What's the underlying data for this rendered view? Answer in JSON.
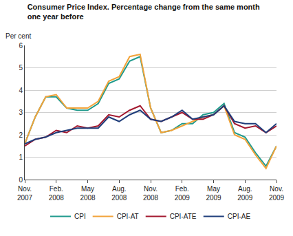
{
  "chart_data": {
    "type": "line",
    "title": "Consumer Price Index. Percentage change from the same month one year before",
    "y_label": "Per cent",
    "categories": [
      "Nov. 2007",
      null,
      null,
      "Feb. 2008",
      null,
      null,
      "May 2008",
      null,
      null,
      "Aug. 2008",
      null,
      null,
      "Nov. 2008",
      null,
      null,
      "Feb. 2009",
      null,
      null,
      "May 2009",
      null,
      null,
      "Aug. 2009",
      null,
      null,
      "Nov. 2009"
    ],
    "series": [
      {
        "name": "CPI",
        "color": "#1f9a8c",
        "values": [
          1.6,
          2.8,
          3.7,
          3.7,
          3.2,
          3.1,
          3.1,
          3.4,
          4.3,
          4.5,
          5.3,
          5.5,
          3.2,
          2.1,
          2.2,
          2.5,
          2.5,
          2.9,
          3.0,
          3.4,
          2.1,
          1.9,
          1.2,
          0.6,
          1.5
        ]
      },
      {
        "name": "CPI-AT",
        "color": "#f2a33a",
        "values": [
          1.6,
          2.8,
          3.7,
          3.8,
          3.2,
          3.2,
          3.2,
          3.5,
          4.4,
          4.6,
          5.5,
          5.6,
          3.2,
          2.1,
          2.2,
          2.4,
          2.6,
          2.8,
          2.9,
          3.3,
          2.0,
          1.8,
          1.1,
          0.5,
          1.5
        ]
      },
      {
        "name": "CPI-ATE",
        "color": "#a3182e",
        "values": [
          1.5,
          1.8,
          1.9,
          2.2,
          2.1,
          2.4,
          2.3,
          2.4,
          2.9,
          2.8,
          3.1,
          3.3,
          2.7,
          2.6,
          2.8,
          3.0,
          2.7,
          2.7,
          2.9,
          3.3,
          2.5,
          2.3,
          2.4,
          2.1,
          2.4
        ]
      },
      {
        "name": "CPI-AE",
        "color": "#1f3d7a",
        "values": [
          1.6,
          1.8,
          1.9,
          2.1,
          2.2,
          2.3,
          2.3,
          2.3,
          2.8,
          2.6,
          2.9,
          3.1,
          2.7,
          2.6,
          2.8,
          3.1,
          2.7,
          2.8,
          2.9,
          3.3,
          2.6,
          2.5,
          2.5,
          2.1,
          2.5
        ]
      }
    ],
    "ylim": [
      0,
      6
    ],
    "yticks": [
      0,
      1,
      2,
      3,
      4,
      5,
      6
    ],
    "grid": true,
    "legend": "bottom"
  }
}
